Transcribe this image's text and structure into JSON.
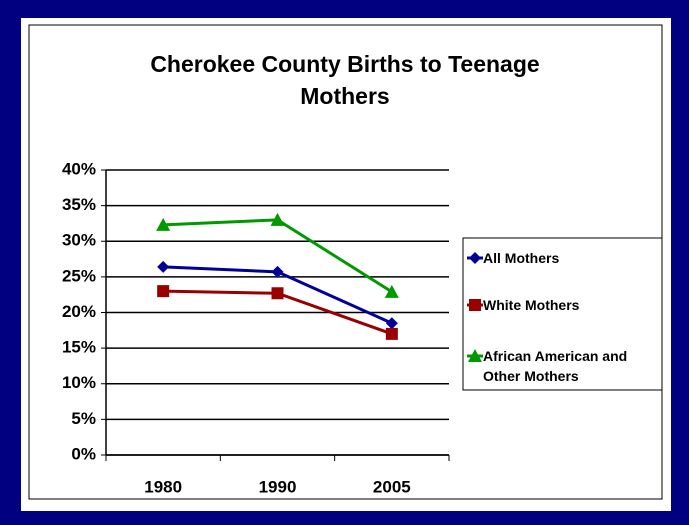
{
  "chart_data": {
    "type": "line",
    "title": "Cherokee County Births to Teenage Mothers",
    "categories": [
      "1980",
      "1990",
      "2005"
    ],
    "series": [
      {
        "name": "All Mothers",
        "color": "#000099",
        "marker": "diamond",
        "values": [
          26.4,
          25.7,
          18.5
        ]
      },
      {
        "name": "White Mothers",
        "color": "#990000",
        "marker": "square",
        "values": [
          23.0,
          22.7,
          17.0
        ]
      },
      {
        "name": "African American and Other Mothers",
        "color": "#009900",
        "marker": "triangle",
        "values": [
          32.3,
          33.0,
          22.9
        ]
      }
    ],
    "ylim": [
      0,
      40
    ],
    "yticks": [
      {
        "value": 0,
        "label": "0%"
      },
      {
        "value": 5,
        "label": "5%"
      },
      {
        "value": 10,
        "label": "10%"
      },
      {
        "value": 15,
        "label": "15%"
      },
      {
        "value": 20,
        "label": "20%"
      },
      {
        "value": 25,
        "label": "25%"
      },
      {
        "value": 30,
        "label": "30%"
      },
      {
        "value": 35,
        "label": "35%"
      },
      {
        "value": 40,
        "label": "40%"
      }
    ],
    "grid": true,
    "legend": "right"
  }
}
